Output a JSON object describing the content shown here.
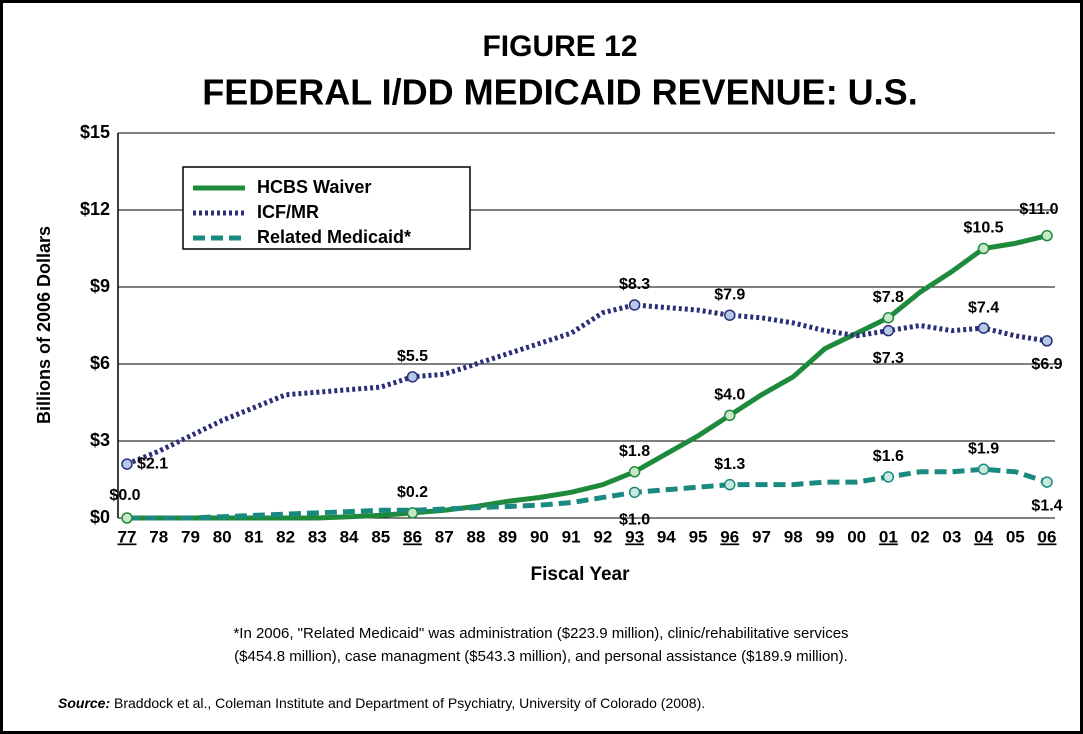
{
  "chart_data": {
    "type": "line",
    "title": "FIGURE 12",
    "subtitle": "FEDERAL I/DD MEDICAID REVENUE: U.S.",
    "y_label": "Billions of 2006 Dollars",
    "x_label": "Fiscal Year",
    "categories": [
      "77",
      "78",
      "79",
      "80",
      "81",
      "82",
      "83",
      "84",
      "85",
      "86",
      "87",
      "88",
      "89",
      "90",
      "91",
      "92",
      "93",
      "94",
      "95",
      "96",
      "97",
      "98",
      "99",
      "00",
      "01",
      "02",
      "03",
      "04",
      "05",
      "06"
    ],
    "series": [
      {
        "name": "HCBS Waiver",
        "color": "#1e8a3c",
        "marker_color": "#c8e8c8",
        "dash": "solid",
        "values": [
          0,
          0,
          0,
          0,
          0,
          0,
          0,
          0.05,
          0.1,
          0.2,
          0.3,
          0.45,
          0.65,
          0.8,
          1.0,
          1.3,
          1.8,
          2.5,
          3.2,
          4.0,
          4.8,
          5.5,
          6.6,
          7.2,
          7.8,
          8.8,
          9.6,
          10.5,
          10.7,
          11.0
        ],
        "value_labels": [
          "$0.0",
          null,
          null,
          null,
          null,
          null,
          null,
          null,
          null,
          "$0.2",
          null,
          null,
          null,
          null,
          null,
          null,
          "$1.8",
          null,
          null,
          "$4.0",
          null,
          null,
          null,
          null,
          "$7.8",
          null,
          null,
          "$10.5",
          null,
          "$11.0"
        ]
      },
      {
        "name": "ICF/MR",
        "color": "#2a2d78",
        "marker_color": "#b8c8e8",
        "dash": "dotted",
        "values": [
          2.1,
          2.6,
          3.2,
          3.8,
          4.3,
          4.8,
          4.9,
          5.0,
          5.1,
          5.5,
          5.6,
          6.0,
          6.4,
          6.8,
          7.2,
          8.0,
          8.3,
          8.2,
          8.1,
          7.9,
          7.8,
          7.6,
          7.3,
          7.1,
          7.3,
          7.5,
          7.3,
          7.4,
          7.1,
          6.9
        ],
        "value_labels": [
          "$2.1",
          null,
          null,
          null,
          null,
          null,
          null,
          null,
          null,
          "$5.5",
          null,
          null,
          null,
          null,
          null,
          null,
          "$8.3",
          null,
          null,
          "$7.9",
          null,
          null,
          null,
          null,
          "$7.3",
          null,
          null,
          "$7.4",
          null,
          "$6.9"
        ]
      },
      {
        "name": "Related Medicaid*",
        "color": "#1a8a80",
        "marker_color": "#c8e8e0",
        "dash": "dashed",
        "values": [
          0,
          0,
          0,
          0.05,
          0.1,
          0.15,
          0.2,
          0.25,
          0.3,
          0.3,
          0.35,
          0.4,
          0.45,
          0.5,
          0.6,
          0.8,
          1.0,
          1.1,
          1.2,
          1.3,
          1.3,
          1.3,
          1.4,
          1.4,
          1.6,
          1.8,
          1.8,
          1.9,
          1.8,
          1.4
        ],
        "value_labels": [
          null,
          null,
          null,
          null,
          null,
          null,
          null,
          null,
          null,
          null,
          null,
          null,
          null,
          null,
          null,
          null,
          "$1.0",
          null,
          null,
          "$1.3",
          null,
          null,
          null,
          null,
          "$1.6",
          null,
          null,
          "$1.9",
          null,
          "$1.4"
        ]
      }
    ],
    "ylim": [
      0,
      15
    ],
    "yticks": [
      {
        "value": 0,
        "label": "$0"
      },
      {
        "value": 3,
        "label": "$3"
      },
      {
        "value": 6,
        "label": "$6"
      },
      {
        "value": 9,
        "label": "$9"
      },
      {
        "value": 12,
        "label": "$12"
      },
      {
        "value": 15,
        "label": "$15"
      }
    ],
    "grid": true,
    "legend": "upper left",
    "footnote": [
      "*In 2006, \"Related Medicaid\" was administration ($223.9 million), clinic/rehabilitative services",
      "($454.8 million), case managment ($543.3 million), and personal assistance ($189.9 million)."
    ],
    "source": {
      "label": "Source:",
      "text": " Braddock et al., Coleman Institute and Department of Psychiatry, University of Colorado (2008)."
    }
  }
}
